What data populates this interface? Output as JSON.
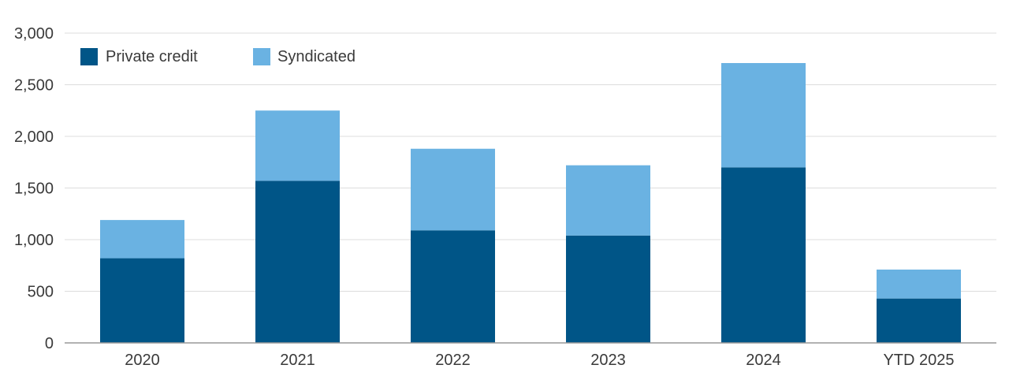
{
  "chart_data": {
    "type": "bar",
    "stacked": true,
    "categories": [
      "2020",
      "2021",
      "2022",
      "2023",
      "2024",
      "YTD 2025"
    ],
    "series": [
      {
        "name": "Private credit",
        "color": "#005587",
        "values": [
          820,
          1570,
          1090,
          1040,
          1700,
          430
        ]
      },
      {
        "name": "Syndicated",
        "color": "#6ab2e2",
        "values": [
          370,
          680,
          790,
          680,
          1010,
          280
        ]
      }
    ],
    "yticks": [
      "0",
      "500",
      "1,000",
      "1,500",
      "2,000",
      "2,500",
      "3,000"
    ],
    "ylim": [
      0,
      3000
    ],
    "grid": true,
    "legend_position": "top-left",
    "title": "",
    "xlabel": "",
    "ylabel": ""
  }
}
